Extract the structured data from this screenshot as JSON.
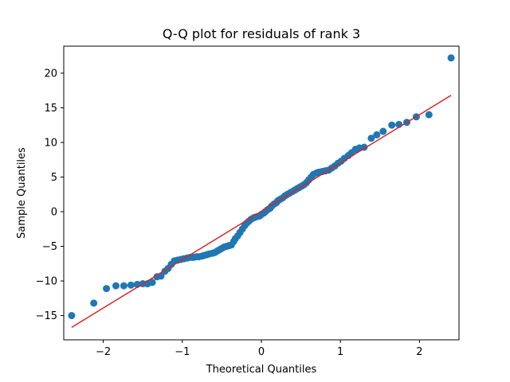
{
  "chart_data": {
    "type": "scatter",
    "title": "Q-Q plot for residuals of rank 3",
    "xlabel": "Theoretical Quantiles",
    "ylabel": "Sample Quantiles",
    "xlim": [
      -2.5,
      2.5
    ],
    "ylim": [
      -18.5,
      23.9
    ],
    "xticks": [
      -2,
      -1,
      0,
      1,
      2
    ],
    "yticks": [
      -15,
      -10,
      -5,
      0,
      5,
      10,
      15,
      20
    ],
    "grid": false,
    "series": [
      {
        "kind": "scatter",
        "color": "#1f77b4",
        "points": [
          [
            -2.4,
            -15.0
          ],
          [
            -2.12,
            -13.2
          ],
          [
            -1.96,
            -11.1
          ],
          [
            -1.84,
            -10.7
          ],
          [
            -1.74,
            -10.7
          ],
          [
            -1.65,
            -10.6
          ],
          [
            -1.57,
            -10.5
          ],
          [
            -1.5,
            -10.4
          ],
          [
            -1.44,
            -10.4
          ],
          [
            -1.38,
            -10.2
          ],
          [
            -1.32,
            -9.4
          ],
          [
            -1.27,
            -9.3
          ],
          [
            -1.22,
            -8.6
          ],
          [
            -1.18,
            -8.2
          ],
          [
            -1.14,
            -7.6
          ],
          [
            -1.1,
            -7.1
          ],
          [
            -1.06,
            -7.0
          ],
          [
            -1.02,
            -6.9
          ],
          [
            -0.98,
            -6.8
          ],
          [
            -0.94,
            -6.7
          ],
          [
            -0.9,
            -6.6
          ],
          [
            -0.86,
            -6.6
          ],
          [
            -0.82,
            -6.5
          ],
          [
            -0.79,
            -6.5
          ],
          [
            -0.75,
            -6.4
          ],
          [
            -0.72,
            -6.3
          ],
          [
            -0.69,
            -6.2
          ],
          [
            -0.66,
            -6.1
          ],
          [
            -0.62,
            -6.0
          ],
          [
            -0.59,
            -5.9
          ],
          [
            -0.56,
            -5.7
          ],
          [
            -0.53,
            -5.5
          ],
          [
            -0.5,
            -5.3
          ],
          [
            -0.47,
            -5.1
          ],
          [
            -0.44,
            -5.0
          ],
          [
            -0.41,
            -4.9
          ],
          [
            -0.38,
            -4.8
          ],
          [
            -0.35,
            -4.3
          ],
          [
            -0.33,
            -3.9
          ],
          [
            -0.3,
            -3.5
          ],
          [
            -0.27,
            -3.0
          ],
          [
            -0.24,
            -2.5
          ],
          [
            -0.21,
            -2.0
          ],
          [
            -0.19,
            -1.7
          ],
          [
            -0.16,
            -1.4
          ],
          [
            -0.13,
            -1.1
          ],
          [
            -0.1,
            -0.9
          ],
          [
            -0.08,
            -0.8
          ],
          [
            -0.05,
            -0.7
          ],
          [
            -0.02,
            -0.6
          ],
          [
            0.0,
            -0.4
          ],
          [
            0.03,
            -0.2
          ],
          [
            0.05,
            0.0
          ],
          [
            0.08,
            0.3
          ],
          [
            0.11,
            0.5
          ],
          [
            0.13,
            0.8
          ],
          [
            0.16,
            1.1
          ],
          [
            0.19,
            1.3
          ],
          [
            0.21,
            1.6
          ],
          [
            0.24,
            1.8
          ],
          [
            0.27,
            2.0
          ],
          [
            0.3,
            2.3
          ],
          [
            0.33,
            2.5
          ],
          [
            0.36,
            2.7
          ],
          [
            0.39,
            2.9
          ],
          [
            0.42,
            3.1
          ],
          [
            0.45,
            3.3
          ],
          [
            0.48,
            3.5
          ],
          [
            0.51,
            3.7
          ],
          [
            0.54,
            3.9
          ],
          [
            0.57,
            4.2
          ],
          [
            0.6,
            4.6
          ],
          [
            0.63,
            5.0
          ],
          [
            0.66,
            5.4
          ],
          [
            0.7,
            5.6
          ],
          [
            0.73,
            5.7
          ],
          [
            0.77,
            5.8
          ],
          [
            0.81,
            5.9
          ],
          [
            0.85,
            6.0
          ],
          [
            0.89,
            6.3
          ],
          [
            0.93,
            6.6
          ],
          [
            0.97,
            7.0
          ],
          [
            1.01,
            7.3
          ],
          [
            1.05,
            7.7
          ],
          [
            1.1,
            8.1
          ],
          [
            1.14,
            8.5
          ],
          [
            1.19,
            9.0
          ],
          [
            1.24,
            9.2
          ],
          [
            1.3,
            9.3
          ],
          [
            1.39,
            10.6
          ],
          [
            1.46,
            11.1
          ],
          [
            1.54,
            11.6
          ],
          [
            1.65,
            12.5
          ],
          [
            1.74,
            12.6
          ],
          [
            1.84,
            12.9
          ],
          [
            1.96,
            13.7
          ],
          [
            2.12,
            14.0
          ],
          [
            2.4,
            22.2
          ]
        ]
      },
      {
        "kind": "line",
        "color": "#d62728",
        "points": [
          [
            -2.4,
            -16.7
          ],
          [
            2.4,
            16.8
          ]
        ]
      }
    ]
  }
}
